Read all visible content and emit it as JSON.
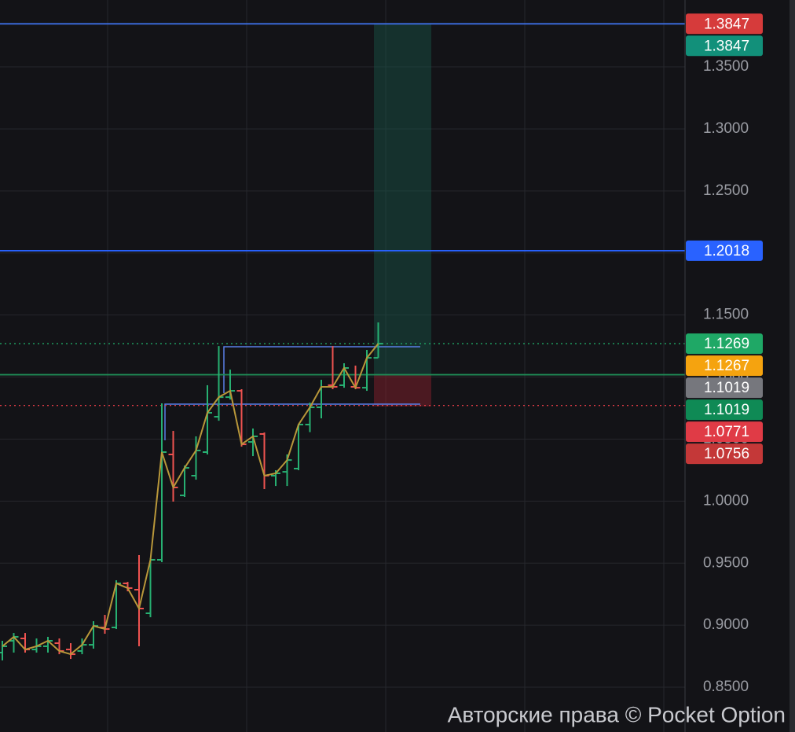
{
  "chart_data": {
    "type": "ohlc",
    "open": [
      0.8779,
      0.8874,
      0.8893,
      0.8804,
      0.883,
      0.8855,
      0.8804,
      0.8792,
      0.8842,
      0.8982,
      0.8982,
      0.9337,
      0.9286,
      0.9096,
      0.9527,
      1.0376,
      1.0046,
      1.0205,
      1.0395,
      1.068,
      1.0838,
      1.0889,
      1.0477,
      1.0541,
      1.0205,
      1.0236,
      1.0262,
      1.0617,
      1.0756,
      1.0934,
      1.0934,
      1.0921,
      1.0914,
      1.1155
    ],
    "high": [
      0.8874,
      0.8937,
      0.8937,
      0.8893,
      0.8906,
      0.8893,
      0.8855,
      0.8893,
      0.9032,
      0.9083,
      0.9362,
      0.9349,
      0.9565,
      0.9539,
      1.0788,
      1.0566,
      1.0287,
      1.0522,
      1.0934,
      1.125,
      1.106,
      1.0902,
      1.0585,
      1.0553,
      1.0249,
      1.0376,
      1.0617,
      1.0794,
      1.0978,
      1.125,
      1.1111,
      1.1092,
      1.1219,
      1.144
    ],
    "low": [
      0.8716,
      0.8779,
      0.8779,
      0.8779,
      0.8779,
      0.8766,
      0.8728,
      0.8766,
      0.8811,
      0.8931,
      0.8969,
      0.9273,
      0.883,
      0.9064,
      0.9508,
      0.9996,
      1.0034,
      1.0173,
      1.0376,
      1.0648,
      1.0819,
      1.0439,
      1.0363,
      1.0097,
      1.0122,
      1.0122,
      1.0249,
      1.0556,
      1.0667,
      1.0902,
      1.0914,
      1.0902,
      1.0889,
      1.1155
    ],
    "close": [
      0.883,
      0.8906,
      0.8804,
      0.883,
      0.8874,
      0.8792,
      0.8766,
      0.8842,
      0.8994,
      0.8969,
      0.9337,
      0.9299,
      0.9134,
      0.9527,
      1.0395,
      1.011,
      1.0268,
      1.0408,
      1.0712,
      1.0838,
      1.0889,
      1.0458,
      1.0522,
      1.0205,
      1.0224,
      1.0331,
      1.0617,
      1.0756,
      1.0921,
      1.0921,
      1.1073,
      1.0914,
      1.1155,
      1.1269
    ],
    "up_color": "#27b072",
    "down_color": "#ef5350",
    "close_line_color": "#b8973a",
    "ylim": [
      0.8139,
      1.4039
    ],
    "yticks": [
      {
        "value": 0.85,
        "label": "0.8500"
      },
      {
        "value": 0.9,
        "label": "0.9000"
      },
      {
        "value": 0.95,
        "label": "0.9500"
      },
      {
        "value": 1,
        "label": "1.0000"
      },
      {
        "value": 1.05,
        "label": "1.0500"
      },
      {
        "value": 1.1,
        "label": "1.1000"
      },
      {
        "value": 1.15,
        "label": "1.1500"
      },
      {
        "value": 1.2,
        "label": "1.2000"
      },
      {
        "value": 1.25,
        "label": "1.2500"
      },
      {
        "value": 1.3,
        "label": "1.3000"
      },
      {
        "value": 1.35,
        "label": "1.3500"
      }
    ],
    "grid": true,
    "price_lines": [
      {
        "value": 1.3847,
        "label": "1.3847",
        "color": "#d63b3b",
        "line": "dotted"
      },
      {
        "value": 1.3847,
        "label": "1.3847",
        "color": "#12907a",
        "line": "solid",
        "line_color": "#3d6fe6"
      },
      {
        "value": 1.2018,
        "label": "1.2018",
        "color": "#2962ff",
        "line": "solid"
      },
      {
        "value": 1.1269,
        "label": "1.1269",
        "color": "#1fa866",
        "line": "dotted"
      },
      {
        "value": 1.1267,
        "label": "1.1267",
        "color": "#f5a30f",
        "line": "none"
      },
      {
        "value": 1.1019,
        "label": "1.1019",
        "color": "#76777d",
        "line": "none"
      },
      {
        "value": 1.1019,
        "label": "1.1019",
        "color": "#0f8a55",
        "line": "solid",
        "line_color": "#1f8a55"
      },
      {
        "value": 1.0771,
        "label": "1.0771",
        "color": "#e03b46",
        "line": "dotted"
      },
      {
        "value": 1.0756,
        "label": "1.0756",
        "color": "#c43838",
        "line": "none"
      }
    ],
    "annotation": "Авторские права © Pocket Option"
  }
}
